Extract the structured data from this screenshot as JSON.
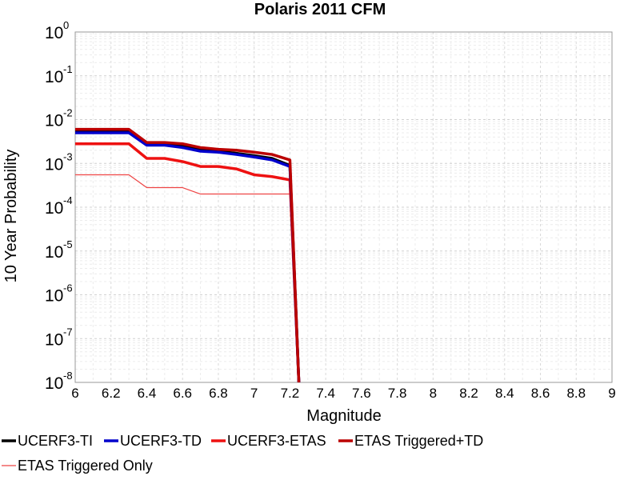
{
  "chart_data": {
    "type": "line",
    "title": "Polaris 2011 CFM",
    "xlabel": "Magnitude",
    "ylabel": "10 Year Probability",
    "xlim": [
      6,
      9
    ],
    "ylim": [
      1e-08,
      1
    ],
    "yscale": "log",
    "grid": true,
    "legend_placement": "bottom",
    "x_ticks": [
      "6",
      "6.2",
      "6.4",
      "6.6",
      "6.8",
      "7",
      "7.2",
      "7.4",
      "7.6",
      "7.8",
      "8",
      "8.2",
      "8.4",
      "8.6",
      "8.8",
      "9"
    ],
    "y_ticks": [
      {
        "base": "10",
        "exp": "0"
      },
      {
        "base": "10",
        "exp": "-1"
      },
      {
        "base": "10",
        "exp": "-2"
      },
      {
        "base": "10",
        "exp": "-3"
      },
      {
        "base": "10",
        "exp": "-4"
      },
      {
        "base": "10",
        "exp": "-5"
      },
      {
        "base": "10",
        "exp": "-6"
      },
      {
        "base": "10",
        "exp": "-7"
      },
      {
        "base": "10",
        "exp": "-8"
      }
    ],
    "series": [
      {
        "name": "UCERF3-TI",
        "color": "#000000",
        "width": 3.5,
        "x": [
          6.0,
          6.3,
          6.4,
          6.5,
          6.6,
          6.7,
          6.8,
          6.9,
          7.0,
          7.1,
          7.2,
          7.25
        ],
        "y": [
          0.0055,
          0.0055,
          0.0028,
          0.0028,
          0.0025,
          0.002,
          0.0019,
          0.0017,
          0.0015,
          0.0013,
          0.0009,
          1e-08
        ]
      },
      {
        "name": "UCERF3-TD",
        "color": "#0000cc",
        "width": 3.5,
        "x": [
          6.0,
          6.3,
          6.4,
          6.5,
          6.6,
          6.7,
          6.8,
          6.9,
          7.0,
          7.1,
          7.2,
          7.25
        ],
        "y": [
          0.005,
          0.005,
          0.0026,
          0.0026,
          0.0023,
          0.0019,
          0.0018,
          0.0016,
          0.0014,
          0.0012,
          0.00085,
          1e-08
        ]
      },
      {
        "name": "UCERF3-ETAS",
        "color": "#ee1111",
        "width": 3.5,
        "x": [
          6.0,
          6.3,
          6.4,
          6.5,
          6.6,
          6.7,
          6.8,
          6.9,
          7.0,
          7.1,
          7.2,
          7.25
        ],
        "y": [
          0.0028,
          0.0028,
          0.0013,
          0.0013,
          0.0011,
          0.00085,
          0.00085,
          0.00075,
          0.00055,
          0.0005,
          0.00042,
          1e-08
        ]
      },
      {
        "name": "ETAS Triggered+TD",
        "color": "#bb0000",
        "width": 3.5,
        "x": [
          6.0,
          6.3,
          6.4,
          6.5,
          6.6,
          6.7,
          6.8,
          6.9,
          7.0,
          7.1,
          7.2,
          7.25
        ],
        "y": [
          0.006,
          0.006,
          0.003,
          0.003,
          0.0028,
          0.0023,
          0.0021,
          0.002,
          0.0018,
          0.0016,
          0.0012,
          1e-08
        ]
      },
      {
        "name": "ETAS Triggered Only",
        "color": "#ee4444",
        "width": 1.2,
        "x": [
          6.0,
          6.3,
          6.4,
          6.5,
          6.6,
          6.7,
          6.8,
          6.9,
          7.0,
          7.1,
          7.2,
          7.25
        ],
        "y": [
          0.00055,
          0.00055,
          0.00028,
          0.00028,
          0.00028,
          0.0002,
          0.0002,
          0.0002,
          0.0002,
          0.0002,
          0.0002,
          1e-08
        ]
      }
    ]
  }
}
